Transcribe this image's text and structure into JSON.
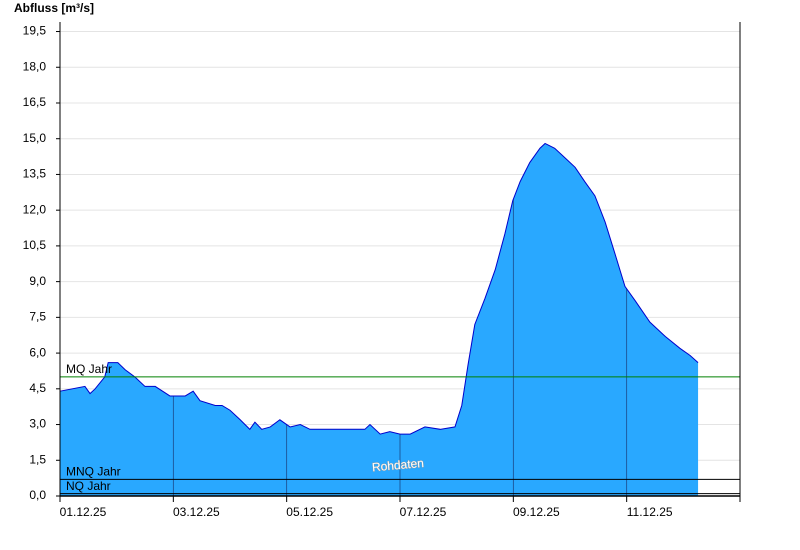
{
  "chart_data": {
    "type": "area",
    "y_axis_label": "Abfluss [m³/s]",
    "watermark": "Rohdaten",
    "color": "#29a8ff",
    "line_color": "#0000cc",
    "grid": true,
    "xlim": [
      0,
      12
    ],
    "ylim": [
      0,
      19.9
    ],
    "xticks": [
      {
        "value": 0,
        "label": "01.12.25"
      },
      {
        "value": 2,
        "label": "03.12.25"
      },
      {
        "value": 4,
        "label": "05.12.25"
      },
      {
        "value": 6,
        "label": "07.12.25"
      },
      {
        "value": 8,
        "label": "09.12.25"
      },
      {
        "value": 10,
        "label": "11.12.25"
      }
    ],
    "yticks": [
      {
        "value": 0,
        "label": "0,0"
      },
      {
        "value": 1.5,
        "label": "1,5"
      },
      {
        "value": 3,
        "label": "3,0"
      },
      {
        "value": 4.5,
        "label": "4,5"
      },
      {
        "value": 6,
        "label": "6,0"
      },
      {
        "value": 7.5,
        "label": "7,5"
      },
      {
        "value": 9,
        "label": "9,0"
      },
      {
        "value": 10.5,
        "label": "10,5"
      },
      {
        "value": 12,
        "label": "12,0"
      },
      {
        "value": 13.5,
        "label": "13,5"
      },
      {
        "value": 15,
        "label": "15,0"
      },
      {
        "value": 16.5,
        "label": "16,5"
      },
      {
        "value": 18,
        "label": "18,0"
      },
      {
        "value": 19.5,
        "label": "19,5"
      }
    ],
    "reference_lines": [
      {
        "label": "MQ Jahr",
        "value": 5.0,
        "color": "#008000"
      },
      {
        "label": "MNQ Jahr",
        "value": 0.7,
        "color": "#000000"
      },
      {
        "label": "NQ Jahr",
        "value": 0.1,
        "color": "#000000"
      }
    ],
    "x": [
      0,
      0.44,
      0.53,
      0.62,
      0.79,
      0.85,
      1.02,
      1.15,
      1.32,
      1.5,
      1.68,
      1.94,
      2.21,
      2.35,
      2.47,
      2.74,
      2.86,
      3.0,
      3.18,
      3.35,
      3.44,
      3.56,
      3.71,
      3.88,
      4.06,
      4.24,
      4.41,
      4.59,
      4.94,
      5.38,
      5.47,
      5.65,
      5.82,
      6.0,
      6.18,
      6.44,
      6.71,
      6.97,
      7.09,
      7.2,
      7.32,
      7.5,
      7.68,
      7.85,
      7.99,
      8.12,
      8.29,
      8.47,
      8.56,
      8.73,
      8.91,
      9.09,
      9.26,
      9.44,
      9.62,
      9.79,
      9.97,
      10.15,
      10.41,
      10.68,
      10.94,
      11.12,
      11.26
    ],
    "values": [
      4.4,
      4.6,
      4.3,
      4.5,
      5.0,
      5.6,
      5.6,
      5.3,
      5.0,
      4.6,
      4.6,
      4.2,
      4.2,
      4.4,
      4.0,
      3.8,
      3.8,
      3.6,
      3.2,
      2.8,
      3.1,
      2.8,
      2.9,
      3.2,
      2.9,
      3.0,
      2.8,
      2.8,
      2.8,
      2.8,
      3.0,
      2.6,
      2.7,
      2.6,
      2.6,
      2.9,
      2.8,
      2.9,
      3.8,
      5.5,
      7.2,
      8.3,
      9.5,
      11.0,
      12.4,
      13.2,
      14.0,
      14.6,
      14.8,
      14.6,
      14.2,
      13.8,
      13.2,
      12.6,
      11.5,
      10.2,
      8.8,
      8.2,
      7.3,
      6.7,
      6.2,
      5.9,
      5.6
    ]
  }
}
